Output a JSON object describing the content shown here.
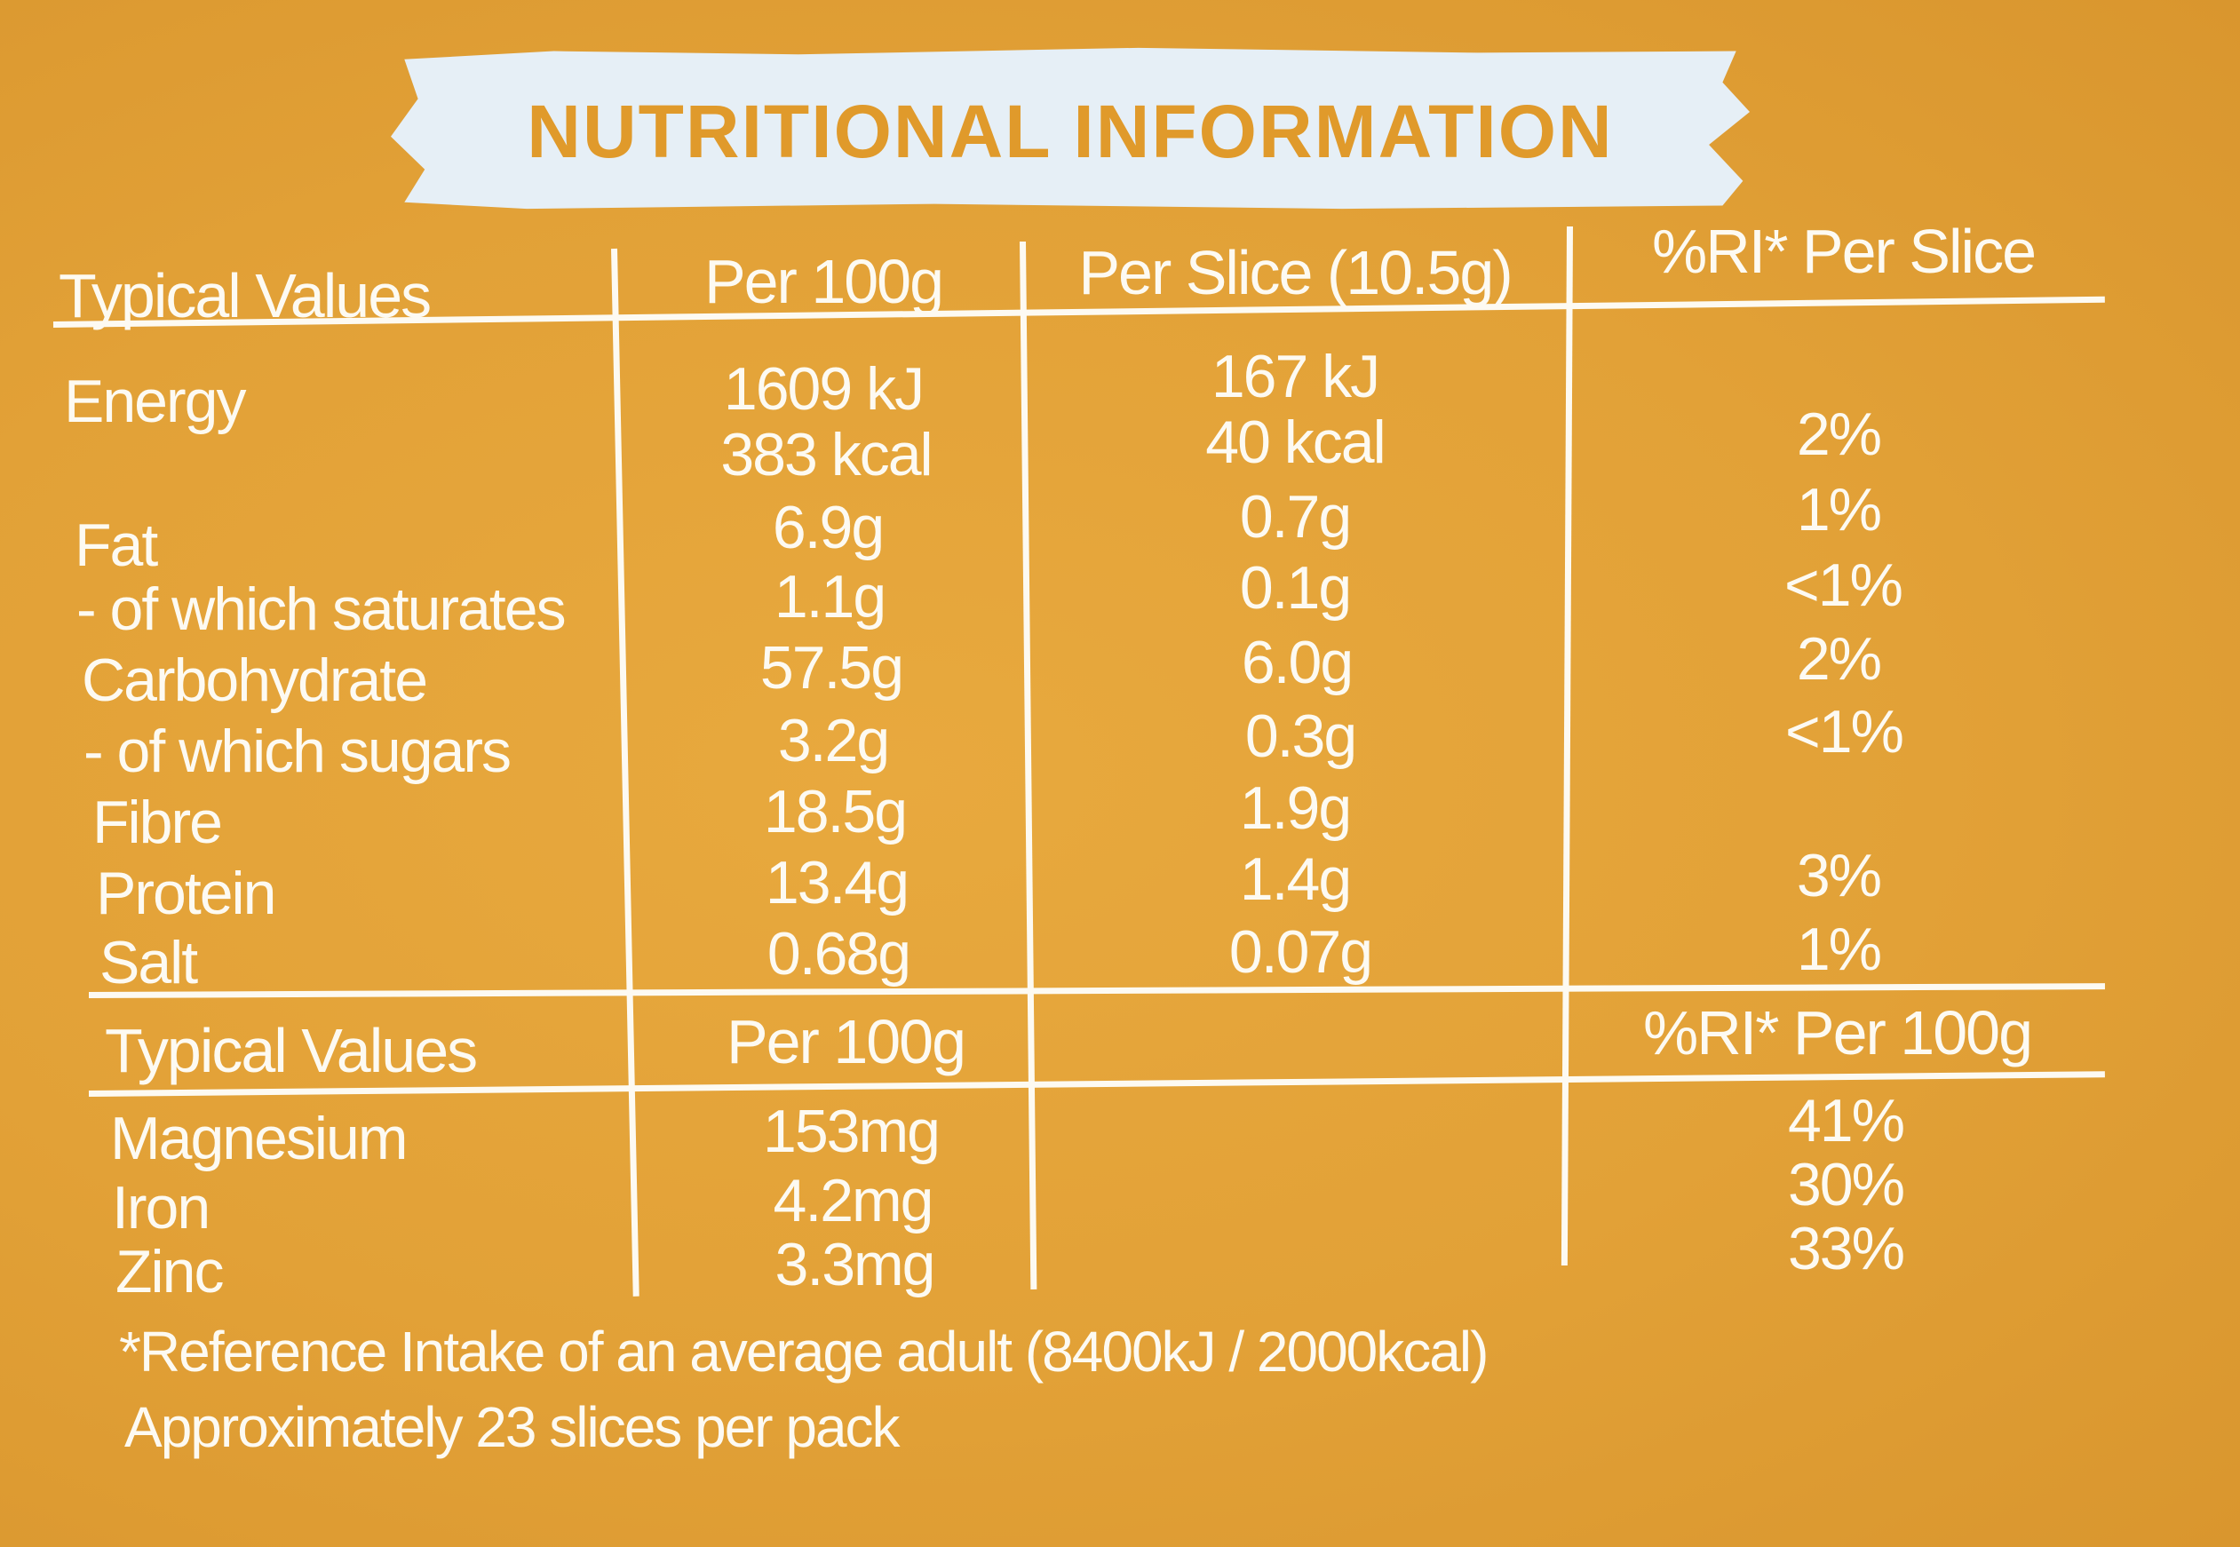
{
  "title": "NUTRITIONAL INFORMATION",
  "table1": {
    "headers": [
      "Typical Values",
      "Per 100g",
      "Per Slice (10.5g)",
      "%RI* Per Slice"
    ],
    "rows": [
      {
        "name": "Energy",
        "per100": "1609 kJ",
        "perslice": "167 kJ",
        "ri": ""
      },
      {
        "name": "",
        "per100": "383 kcal",
        "perslice": "40 kcal",
        "ri": "2%"
      },
      {
        "name": "Fat",
        "per100": "6.9g",
        "perslice": "0.7g",
        "ri": "1%"
      },
      {
        "name": "- of which saturates",
        "per100": "1.1g",
        "perslice": "0.1g",
        "ri": "<1%"
      },
      {
        "name": "Carbohydrate",
        "per100": "57.5g",
        "perslice": "6.0g",
        "ri": "2%"
      },
      {
        "name": "- of which sugars",
        "per100": "3.2g",
        "perslice": "0.3g",
        "ri": "<1%"
      },
      {
        "name": "Fibre",
        "per100": "18.5g",
        "perslice": "1.9g",
        "ri": ""
      },
      {
        "name": "Protein",
        "per100": "13.4g",
        "perslice": "1.4g",
        "ri": "3%"
      },
      {
        "name": "Salt",
        "per100": "0.68g",
        "perslice": "0.07g",
        "ri": "1%"
      }
    ]
  },
  "table2": {
    "headers": [
      "Typical Values",
      "Per 100g",
      "",
      "%RI* Per 100g"
    ],
    "rows": [
      {
        "name": "Magnesium",
        "per100": "153mg",
        "ri": "41%"
      },
      {
        "name": "Iron",
        "per100": "4.2mg",
        "ri": "30%"
      },
      {
        "name": "Zinc",
        "per100": "3.3mg",
        "ri": "33%"
      }
    ]
  },
  "footnote": {
    "reference": "*Reference Intake of an average adult (8400kJ / 2000kcal)",
    "slices": "Approximately 23 slices per pack"
  }
}
